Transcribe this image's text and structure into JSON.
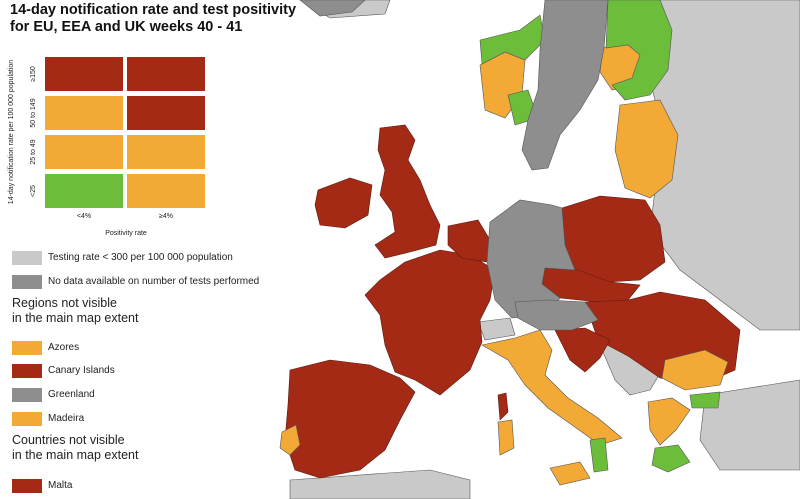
{
  "title_line1": "14-day notification rate and test positivity",
  "title_line2": "for EU, EEA and UK weeks 40 - 41",
  "colors": {
    "red": "#a52a16",
    "orange": "#f3a935",
    "green": "#6cbd3a",
    "light_grey": "#c9c9c9",
    "dark_grey": "#8e8e8e",
    "sea": "#ffffff",
    "border": "#5a1a10"
  },
  "legend_matrix": {
    "y_axis_label": "14-day notification rate per 100 000 population",
    "x_axis_label": "Positivity rate",
    "row_labels": [
      "≥150",
      "50 to 149",
      "25 to 49",
      "<25"
    ],
    "col_labels": [
      "<4%",
      "≥4%"
    ],
    "cells": [
      [
        "red",
        "red"
      ],
      [
        "orange",
        "red"
      ],
      [
        "orange",
        "orange"
      ],
      [
        "green",
        "orange"
      ]
    ]
  },
  "legend_items": {
    "testing_rate": "Testing rate < 300 per 100 000 population",
    "no_data": "No data available on number of tests performed"
  },
  "regions_heading_1": "Regions not visible",
  "regions_heading_2": "in the main map extent",
  "regions": [
    {
      "label": "Azores",
      "color": "orange"
    },
    {
      "label": "Canary Islands",
      "color": "red"
    },
    {
      "label": "Greenland",
      "color": "dark_grey"
    },
    {
      "label": "Madeira",
      "color": "orange"
    }
  ],
  "countries_heading_1": "Countries not visible",
  "countries_heading_2": "in the main map extent",
  "countries": [
    {
      "label": "Malta",
      "color": "red"
    }
  ]
}
